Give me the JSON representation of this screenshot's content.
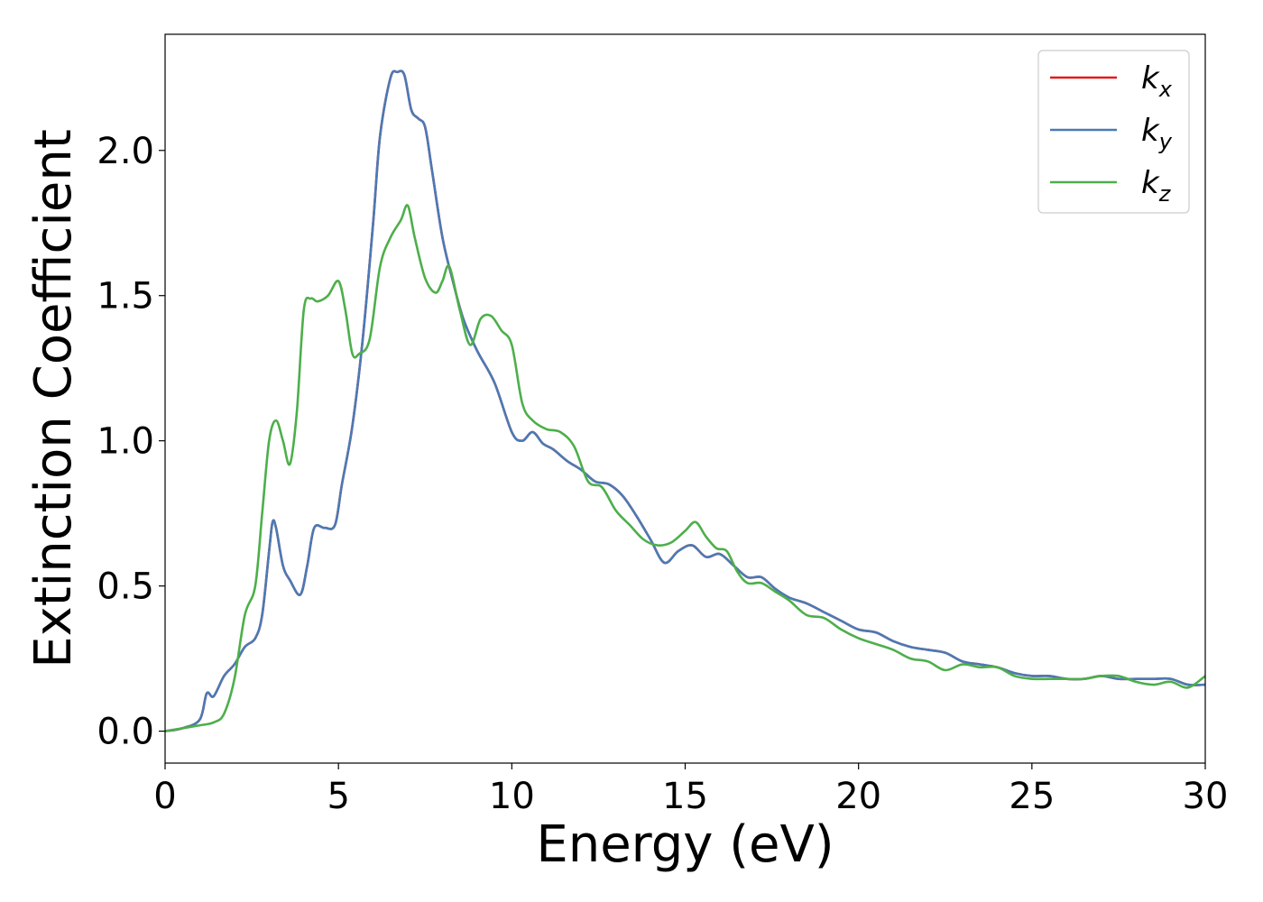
{
  "chart_data": {
    "type": "line",
    "xlabel": "Energy (eV)",
    "ylabel": "Extinction Coefficient",
    "xlim": [
      0,
      30
    ],
    "ylim": [
      -0.11,
      2.4
    ],
    "xticks": [
      0,
      5,
      10,
      15,
      20,
      25,
      30
    ],
    "xtick_labels": [
      "0",
      "5",
      "10",
      "15",
      "20",
      "25",
      "30"
    ],
    "yticks": [
      0.0,
      0.5,
      1.0,
      1.5,
      2.0
    ],
    "ytick_labels": [
      "0.0",
      "0.5",
      "1.0",
      "1.5",
      "2.0"
    ],
    "grid": false,
    "legend_position": "top-right",
    "series": [
      {
        "name": "k",
        "subscript": "x",
        "color": "#e41a1c",
        "x": [
          0,
          0.5,
          1.0,
          1.2,
          1.4,
          1.7,
          2.0,
          2.3,
          2.6,
          2.8,
          3.0,
          3.1,
          3.2,
          3.4,
          3.6,
          3.9,
          4.1,
          4.3,
          4.6,
          4.9,
          5.1,
          5.4,
          5.7,
          6.0,
          6.2,
          6.5,
          6.7,
          6.9,
          7.1,
          7.3,
          7.5,
          7.7,
          8.0,
          8.3,
          8.6,
          9.0,
          9.5,
          10.0,
          10.3,
          10.6,
          10.9,
          11.2,
          11.6,
          12.0,
          12.4,
          12.8,
          13.2,
          13.6,
          14.0,
          14.4,
          14.8,
          15.2,
          15.6,
          16.0,
          16.4,
          16.8,
          17.2,
          17.6,
          18.0,
          18.5,
          19.0,
          19.5,
          20.0,
          20.5,
          21.0,
          21.5,
          22.0,
          22.5,
          23.0,
          23.5,
          24.0,
          24.5,
          25.0,
          25.5,
          26.0,
          26.5,
          27.0,
          27.5,
          28.0,
          28.5,
          29.0,
          29.5,
          30.0
        ],
        "y": [
          0.0,
          0.01,
          0.04,
          0.13,
          0.12,
          0.19,
          0.23,
          0.29,
          0.32,
          0.4,
          0.62,
          0.72,
          0.7,
          0.57,
          0.52,
          0.47,
          0.57,
          0.7,
          0.7,
          0.71,
          0.85,
          1.05,
          1.35,
          1.75,
          2.05,
          2.25,
          2.27,
          2.26,
          2.14,
          2.11,
          2.08,
          1.93,
          1.7,
          1.55,
          1.42,
          1.31,
          1.2,
          1.03,
          1.0,
          1.03,
          0.99,
          0.97,
          0.93,
          0.9,
          0.86,
          0.85,
          0.81,
          0.74,
          0.66,
          0.58,
          0.62,
          0.64,
          0.6,
          0.61,
          0.57,
          0.53,
          0.53,
          0.49,
          0.46,
          0.44,
          0.41,
          0.38,
          0.35,
          0.34,
          0.31,
          0.29,
          0.28,
          0.27,
          0.24,
          0.23,
          0.22,
          0.2,
          0.19,
          0.19,
          0.18,
          0.18,
          0.19,
          0.18,
          0.18,
          0.18,
          0.18,
          0.16,
          0.16
        ]
      },
      {
        "name": "k",
        "subscript": "y",
        "color": "#4a7ab5",
        "x": [
          0,
          0.5,
          1.0,
          1.2,
          1.4,
          1.7,
          2.0,
          2.3,
          2.6,
          2.8,
          3.0,
          3.1,
          3.2,
          3.4,
          3.6,
          3.9,
          4.1,
          4.3,
          4.6,
          4.9,
          5.1,
          5.4,
          5.7,
          6.0,
          6.2,
          6.5,
          6.7,
          6.9,
          7.1,
          7.3,
          7.5,
          7.7,
          8.0,
          8.3,
          8.6,
          9.0,
          9.5,
          10.0,
          10.3,
          10.6,
          10.9,
          11.2,
          11.6,
          12.0,
          12.4,
          12.8,
          13.2,
          13.6,
          14.0,
          14.4,
          14.8,
          15.2,
          15.6,
          16.0,
          16.4,
          16.8,
          17.2,
          17.6,
          18.0,
          18.5,
          19.0,
          19.5,
          20.0,
          20.5,
          21.0,
          21.5,
          22.0,
          22.5,
          23.0,
          23.5,
          24.0,
          24.5,
          25.0,
          25.5,
          26.0,
          26.5,
          27.0,
          27.5,
          28.0,
          28.5,
          29.0,
          29.5,
          30.0
        ],
        "y": [
          0.0,
          0.01,
          0.04,
          0.13,
          0.12,
          0.19,
          0.23,
          0.29,
          0.32,
          0.4,
          0.62,
          0.72,
          0.7,
          0.57,
          0.52,
          0.47,
          0.57,
          0.7,
          0.7,
          0.71,
          0.85,
          1.05,
          1.35,
          1.75,
          2.05,
          2.25,
          2.27,
          2.26,
          2.14,
          2.11,
          2.08,
          1.93,
          1.7,
          1.55,
          1.42,
          1.31,
          1.2,
          1.03,
          1.0,
          1.03,
          0.99,
          0.97,
          0.93,
          0.9,
          0.86,
          0.85,
          0.81,
          0.74,
          0.66,
          0.58,
          0.62,
          0.64,
          0.6,
          0.61,
          0.57,
          0.53,
          0.53,
          0.49,
          0.46,
          0.44,
          0.41,
          0.38,
          0.35,
          0.34,
          0.31,
          0.29,
          0.28,
          0.27,
          0.24,
          0.23,
          0.22,
          0.2,
          0.19,
          0.19,
          0.18,
          0.18,
          0.19,
          0.18,
          0.18,
          0.18,
          0.18,
          0.16,
          0.16
        ]
      },
      {
        "name": "k",
        "subscript": "z",
        "color": "#4daf4a",
        "x": [
          0,
          0.5,
          1.0,
          1.4,
          1.7,
          2.0,
          2.3,
          2.6,
          2.8,
          3.0,
          3.2,
          3.4,
          3.6,
          3.8,
          4.0,
          4.2,
          4.4,
          4.7,
          5.0,
          5.2,
          5.4,
          5.6,
          5.9,
          6.2,
          6.5,
          6.8,
          7.0,
          7.2,
          7.5,
          7.8,
          8.0,
          8.2,
          8.5,
          8.8,
          9.1,
          9.4,
          9.7,
          10.0,
          10.3,
          10.6,
          11.0,
          11.4,
          11.8,
          12.2,
          12.6,
          13.0,
          13.4,
          13.8,
          14.2,
          14.6,
          15.0,
          15.3,
          15.6,
          15.9,
          16.2,
          16.5,
          16.8,
          17.2,
          17.6,
          18.0,
          18.5,
          19.0,
          19.5,
          20.0,
          20.5,
          21.0,
          21.5,
          22.0,
          22.5,
          23.0,
          23.5,
          24.0,
          24.5,
          25.0,
          25.5,
          26.0,
          26.5,
          27.0,
          27.5,
          28.0,
          28.5,
          29.0,
          29.5,
          30.0
        ],
        "y": [
          0.0,
          0.01,
          0.02,
          0.03,
          0.06,
          0.18,
          0.4,
          0.5,
          0.75,
          1.0,
          1.07,
          1.0,
          0.92,
          1.1,
          1.45,
          1.49,
          1.48,
          1.5,
          1.55,
          1.45,
          1.3,
          1.3,
          1.35,
          1.6,
          1.7,
          1.76,
          1.81,
          1.7,
          1.56,
          1.51,
          1.55,
          1.6,
          1.45,
          1.33,
          1.42,
          1.43,
          1.38,
          1.33,
          1.13,
          1.07,
          1.04,
          1.03,
          0.98,
          0.86,
          0.84,
          0.76,
          0.71,
          0.66,
          0.64,
          0.65,
          0.69,
          0.72,
          0.67,
          0.63,
          0.62,
          0.55,
          0.51,
          0.51,
          0.48,
          0.45,
          0.4,
          0.39,
          0.35,
          0.32,
          0.3,
          0.28,
          0.25,
          0.24,
          0.21,
          0.23,
          0.22,
          0.22,
          0.19,
          0.18,
          0.18,
          0.18,
          0.18,
          0.19,
          0.19,
          0.17,
          0.16,
          0.17,
          0.15,
          0.19
        ]
      }
    ]
  }
}
